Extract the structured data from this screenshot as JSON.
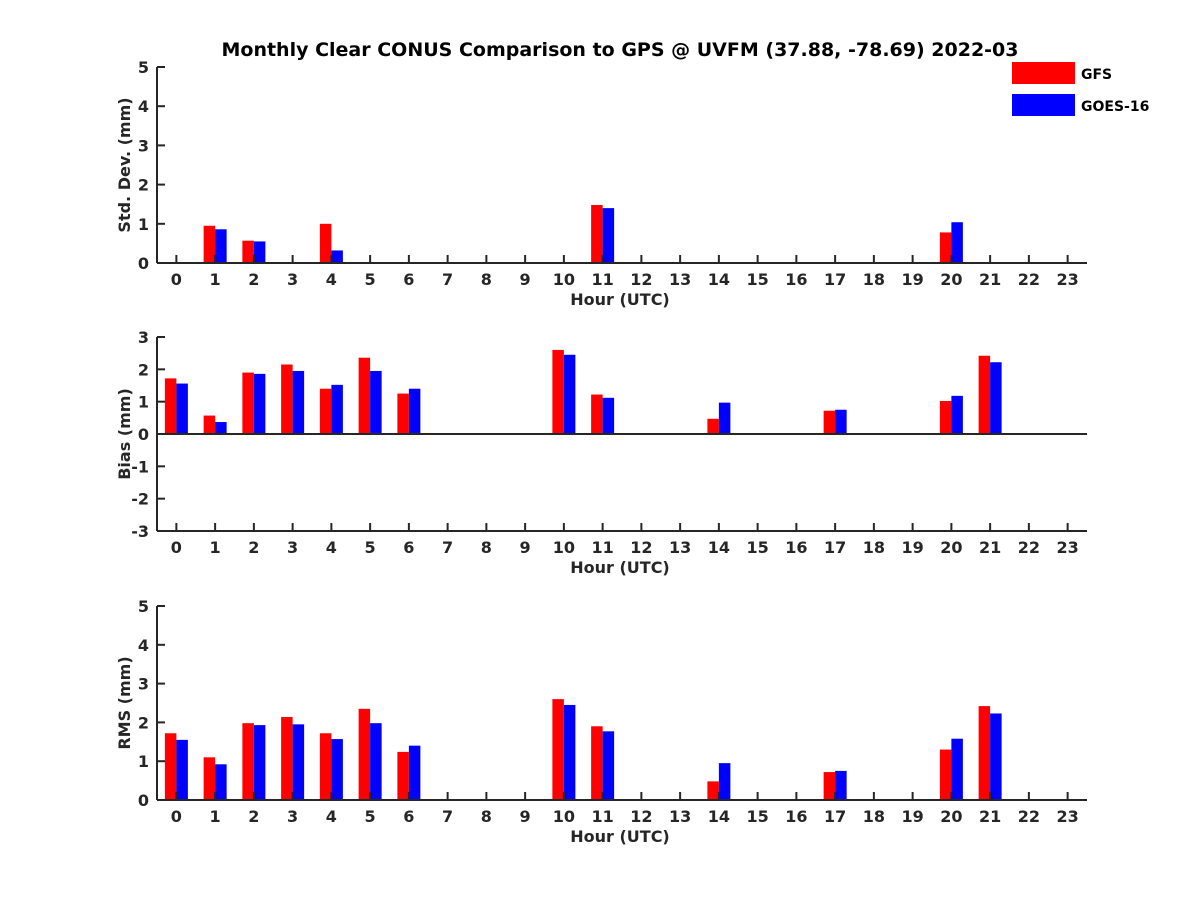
{
  "title": "Monthly Clear CONUS Comparison to GPS @ UVFM (37.88, -78.69) 2022-03",
  "legend": [
    {
      "name": "GFS",
      "color": "#ff0000"
    },
    {
      "name": "GOES-16",
      "color": "#0000ff"
    }
  ],
  "chart_data": [
    {
      "type": "bar",
      "title": "Monthly Clear CONUS Comparison to GPS @ UVFM (37.88, -78.69) 2022-03",
      "xlabel": "Hour (UTC)",
      "ylabel": "Std. Dev. (mm)",
      "ylim": [
        0,
        5
      ],
      "yticks": [
        0,
        1,
        2,
        3,
        4,
        5
      ],
      "categories": [
        "0",
        "1",
        "2",
        "3",
        "4",
        "5",
        "6",
        "7",
        "8",
        "9",
        "10",
        "11",
        "12",
        "13",
        "14",
        "15",
        "16",
        "17",
        "18",
        "19",
        "20",
        "21",
        "22",
        "23"
      ],
      "series": [
        {
          "name": "GFS",
          "color": "#ff0000",
          "values": [
            null,
            0.95,
            0.57,
            null,
            1.0,
            null,
            null,
            null,
            null,
            null,
            null,
            1.48,
            null,
            null,
            null,
            null,
            null,
            null,
            null,
            null,
            0.78,
            null,
            null,
            null
          ]
        },
        {
          "name": "GOES-16",
          "color": "#0000ff",
          "values": [
            null,
            0.86,
            0.55,
            null,
            0.32,
            null,
            null,
            null,
            null,
            null,
            null,
            1.4,
            null,
            null,
            null,
            null,
            null,
            null,
            null,
            null,
            1.04,
            null,
            null,
            null
          ]
        }
      ]
    },
    {
      "type": "bar",
      "title": "",
      "xlabel": "Hour (UTC)",
      "ylabel": "Bias (mm)",
      "ylim": [
        -3,
        3
      ],
      "yticks": [
        -3,
        -2,
        -1,
        0,
        1,
        2,
        3
      ],
      "categories": [
        "0",
        "1",
        "2",
        "3",
        "4",
        "5",
        "6",
        "7",
        "8",
        "9",
        "10",
        "11",
        "12",
        "13",
        "14",
        "15",
        "16",
        "17",
        "18",
        "19",
        "20",
        "21",
        "22",
        "23"
      ],
      "series": [
        {
          "name": "GFS",
          "color": "#ff0000",
          "values": [
            1.72,
            0.57,
            1.9,
            2.15,
            1.4,
            2.36,
            1.25,
            null,
            null,
            null,
            2.6,
            1.22,
            null,
            null,
            0.47,
            null,
            null,
            0.72,
            null,
            null,
            1.02,
            2.42,
            null,
            null
          ]
        },
        {
          "name": "GOES-16",
          "color": "#0000ff",
          "values": [
            1.56,
            0.37,
            1.86,
            1.95,
            1.52,
            1.95,
            1.4,
            null,
            null,
            null,
            2.45,
            1.12,
            null,
            null,
            0.97,
            null,
            null,
            0.75,
            null,
            null,
            1.18,
            2.22,
            null,
            null
          ]
        }
      ]
    },
    {
      "type": "bar",
      "title": "",
      "xlabel": "Hour (UTC)",
      "ylabel": "RMS (mm)",
      "ylim": [
        0,
        5
      ],
      "yticks": [
        0,
        1,
        2,
        3,
        4,
        5
      ],
      "categories": [
        "0",
        "1",
        "2",
        "3",
        "4",
        "5",
        "6",
        "7",
        "8",
        "9",
        "10",
        "11",
        "12",
        "13",
        "14",
        "15",
        "16",
        "17",
        "18",
        "19",
        "20",
        "21",
        "22",
        "23"
      ],
      "series": [
        {
          "name": "GFS",
          "color": "#ff0000",
          "values": [
            1.72,
            1.1,
            1.98,
            2.14,
            1.72,
            2.35,
            1.24,
            null,
            null,
            null,
            2.6,
            1.9,
            null,
            null,
            0.48,
            null,
            null,
            0.72,
            null,
            null,
            1.3,
            2.42,
            null,
            null
          ]
        },
        {
          "name": "GOES-16",
          "color": "#0000ff",
          "values": [
            1.55,
            0.92,
            1.93,
            1.95,
            1.57,
            1.98,
            1.4,
            null,
            null,
            null,
            2.45,
            1.77,
            null,
            null,
            0.95,
            null,
            null,
            0.75,
            null,
            null,
            1.58,
            2.23,
            null,
            null
          ]
        }
      ]
    }
  ]
}
